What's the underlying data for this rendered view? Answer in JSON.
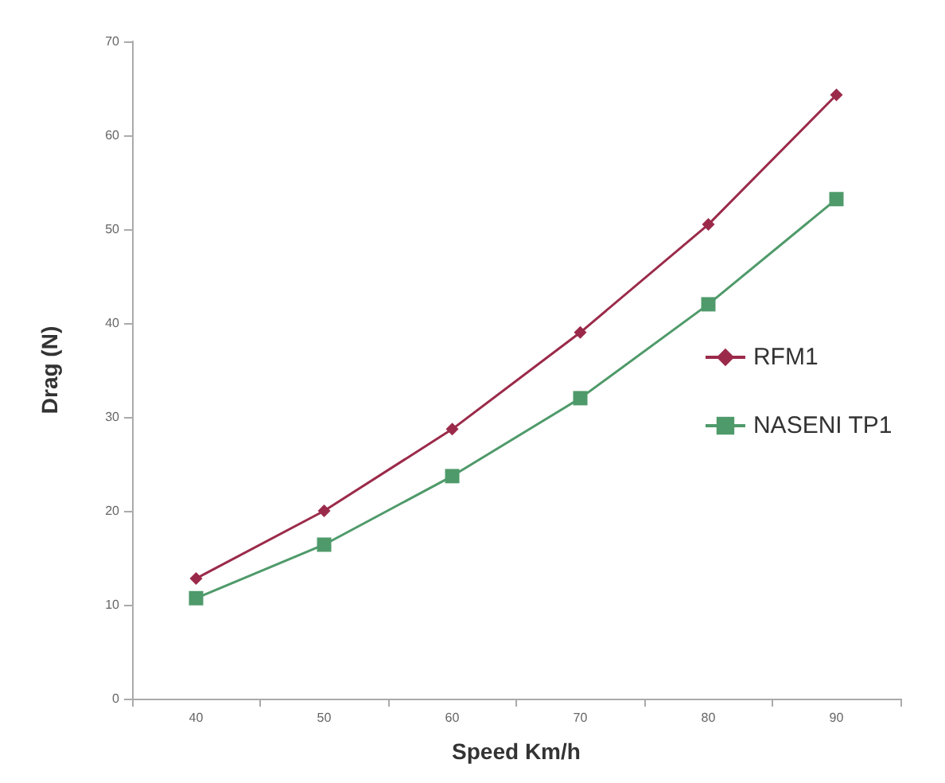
{
  "chart_data": {
    "type": "line",
    "xlabel": "Speed Km/h",
    "ylabel": "Drag (N)",
    "categories": [
      "40",
      "50",
      "60",
      "70",
      "80",
      "90"
    ],
    "series": [
      {
        "name": "RFM1",
        "color": "#9b2a4a",
        "marker": "diamond",
        "values": [
          12.8,
          20.0,
          28.7,
          39.0,
          50.5,
          64.3
        ]
      },
      {
        "name": "NASENI TP1",
        "color": "#4f9a6a",
        "marker": "square",
        "values": [
          10.7,
          16.4,
          23.7,
          32.0,
          42.0,
          53.2
        ]
      }
    ],
    "ylim": [
      0,
      70
    ],
    "yticks": [
      0,
      10,
      20,
      30,
      40,
      50,
      60,
      70
    ],
    "grid": false,
    "legend": "right",
    "line_style": "solid"
  }
}
